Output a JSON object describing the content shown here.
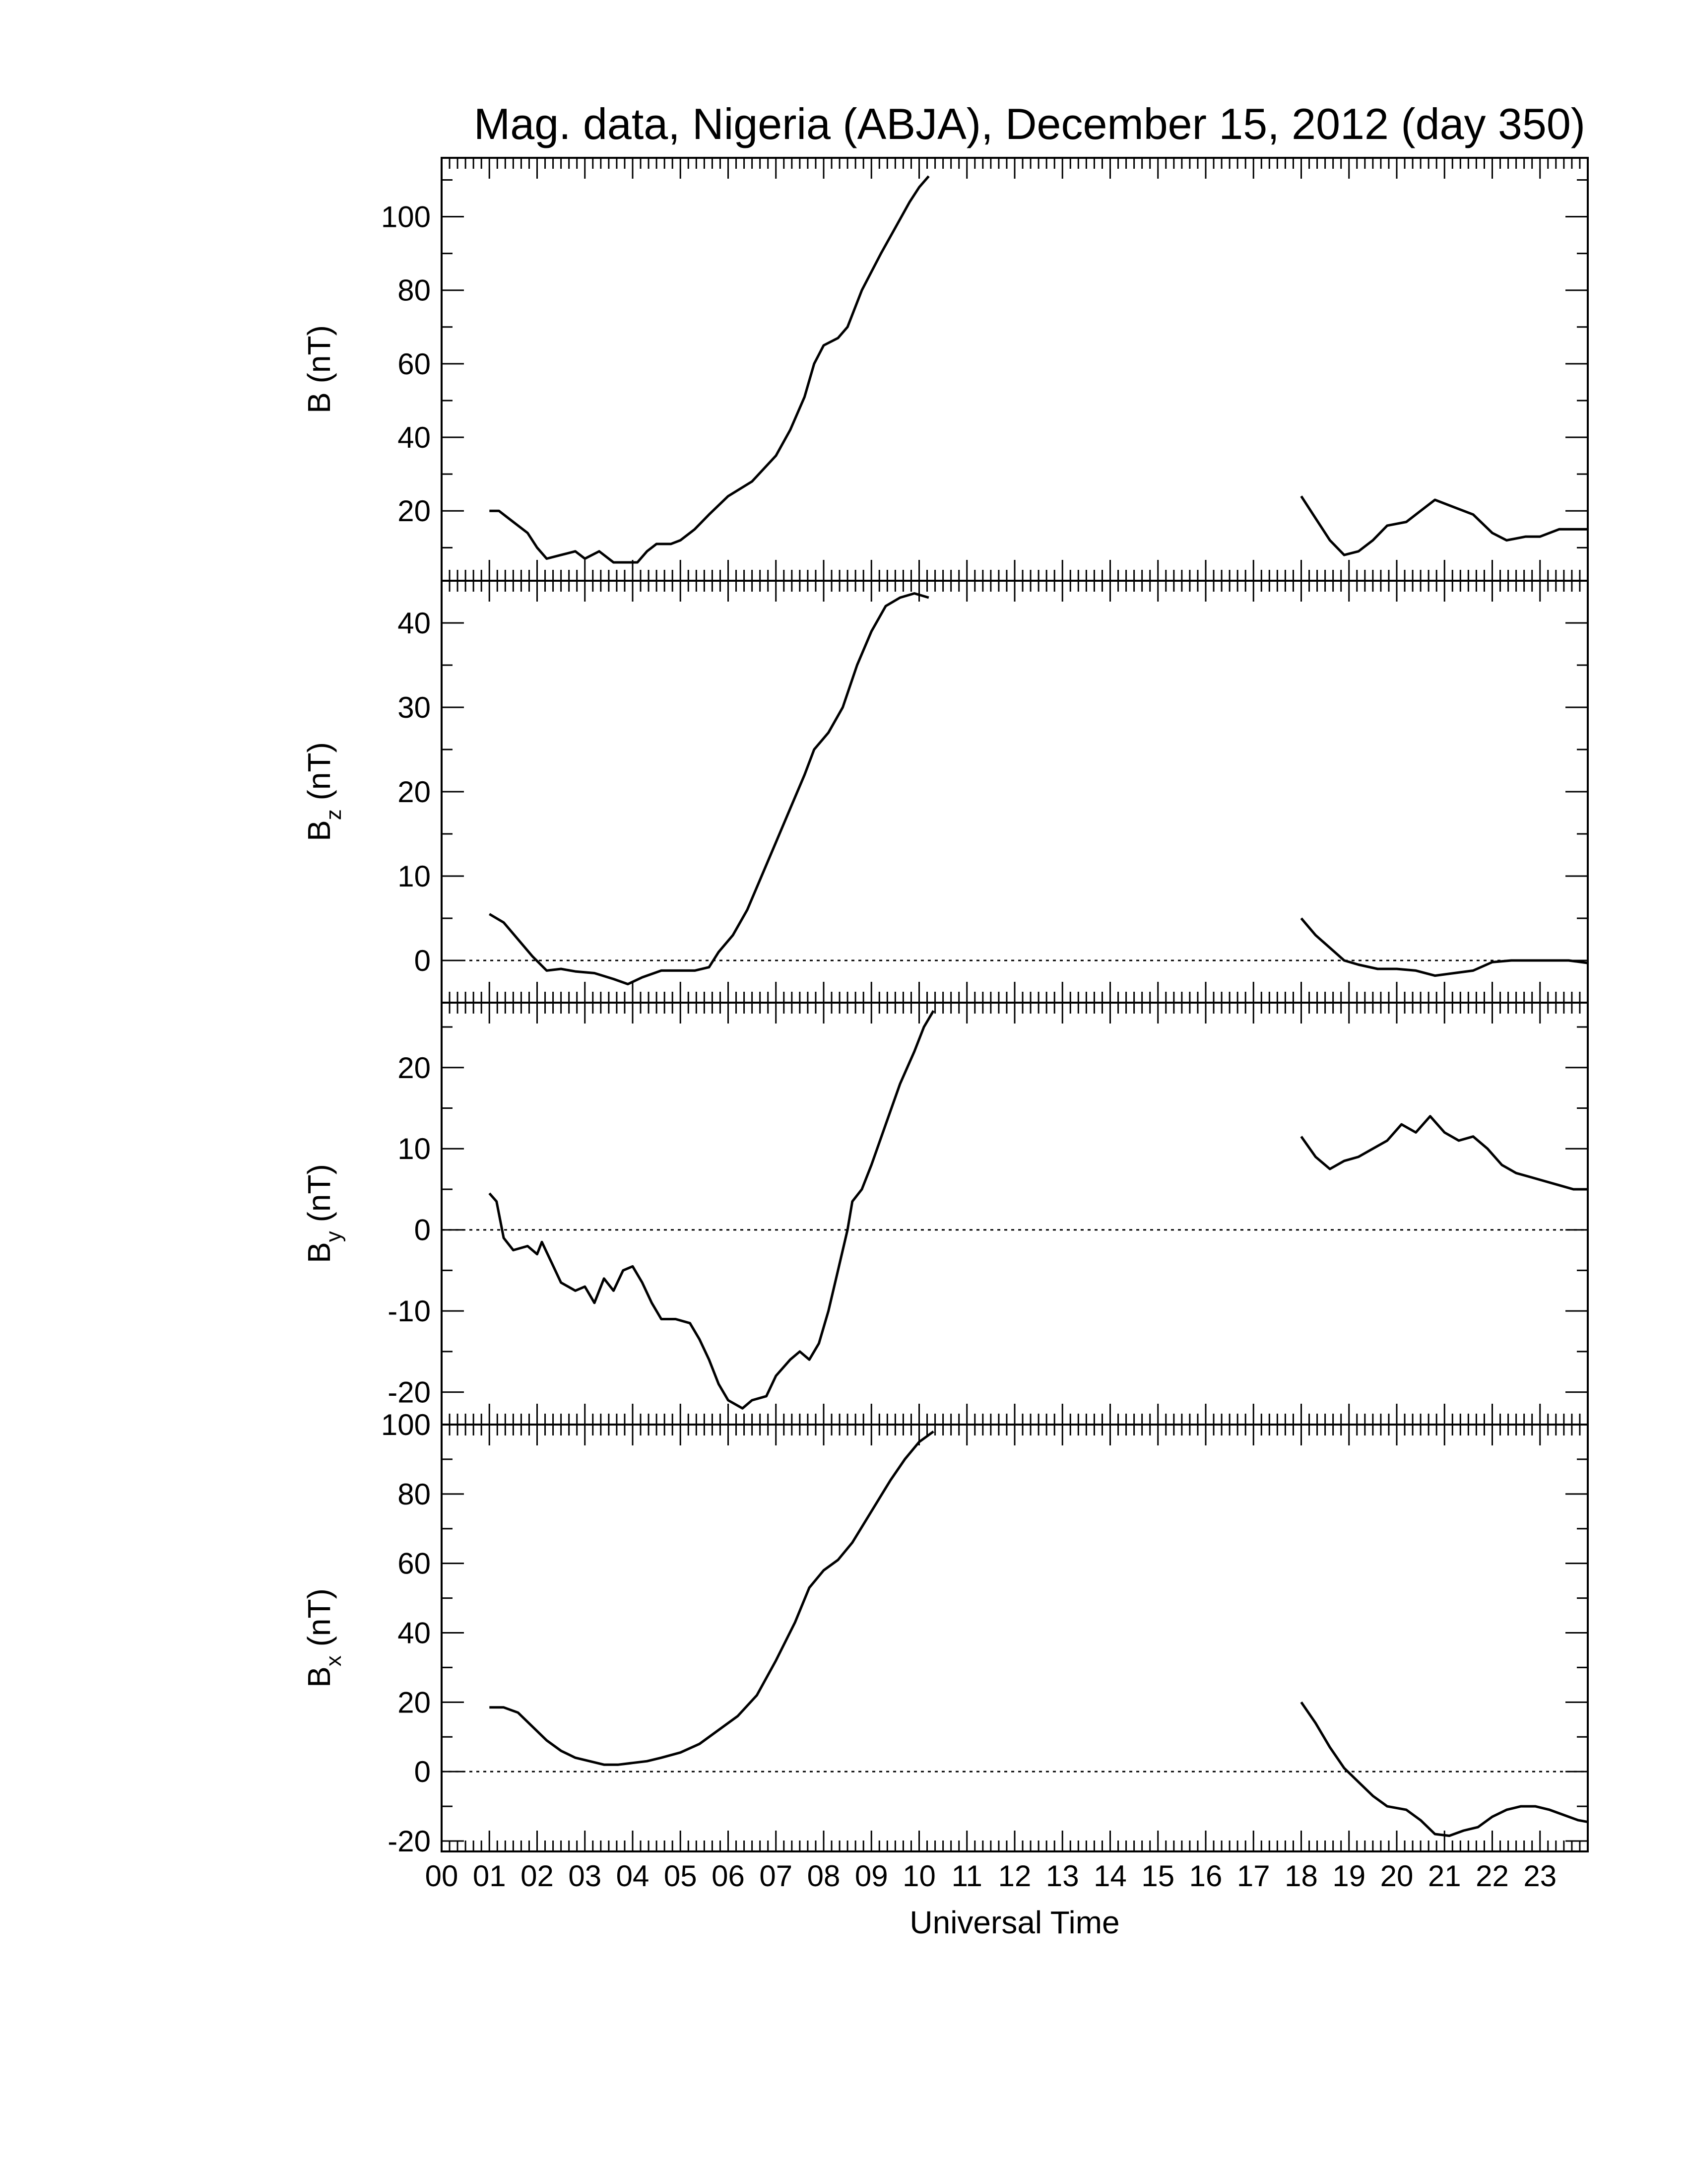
{
  "title": "Mag. data, Nigeria (ABJA), December 15, 2012 (day 350)",
  "chart_data": {
    "type": "line",
    "title": "Mag. data, Nigeria (ABJA), December 15, 2012 (day 350)",
    "xlabel": "Universal Time",
    "x_unit": "hours UT",
    "xlim": [
      0,
      24
    ],
    "x_tick_labels": [
      "00",
      "01",
      "02",
      "03",
      "04",
      "05",
      "06",
      "07",
      "08",
      "09",
      "10",
      "11",
      "12",
      "13",
      "14",
      "15",
      "16",
      "17",
      "18",
      "19",
      "20",
      "21",
      "22",
      "23"
    ],
    "panels": [
      {
        "id": "B",
        "ylabel_main": "B",
        "ylabel_sub": "",
        "ylabel_unit": "(nT)",
        "ylim": [
          1,
          116
        ],
        "yticks": [
          20,
          40,
          60,
          80,
          100
        ],
        "zero_line": false,
        "segments": [
          [
            [
              1.0,
              20
            ],
            [
              1.2,
              20
            ],
            [
              1.5,
              17
            ],
            [
              1.8,
              14
            ],
            [
              2.0,
              10
            ],
            [
              2.2,
              7
            ],
            [
              2.5,
              8
            ],
            [
              2.8,
              9
            ],
            [
              3.0,
              7
            ],
            [
              3.3,
              9
            ],
            [
              3.6,
              6
            ],
            [
              3.9,
              6
            ],
            [
              4.1,
              6
            ],
            [
              4.3,
              9
            ],
            [
              4.5,
              11
            ],
            [
              4.8,
              11
            ],
            [
              5.0,
              12
            ],
            [
              5.3,
              15
            ],
            [
              5.6,
              19
            ],
            [
              6.0,
              24
            ],
            [
              6.5,
              28
            ],
            [
              7.0,
              35
            ],
            [
              7.3,
              42
            ],
            [
              7.6,
              51
            ],
            [
              7.8,
              60
            ],
            [
              8.0,
              65
            ],
            [
              8.3,
              67
            ],
            [
              8.5,
              70
            ],
            [
              8.8,
              80
            ],
            [
              9.2,
              90
            ],
            [
              9.5,
              97
            ],
            [
              9.8,
              104
            ],
            [
              10.0,
              108
            ],
            [
              10.2,
              111
            ]
          ],
          [
            [
              18.0,
              24
            ],
            [
              18.3,
              18
            ],
            [
              18.6,
              12
            ],
            [
              18.9,
              8
            ],
            [
              19.2,
              9
            ],
            [
              19.5,
              12
            ],
            [
              19.8,
              16
            ],
            [
              20.2,
              17
            ],
            [
              20.5,
              20
            ],
            [
              20.8,
              23
            ],
            [
              21.2,
              21
            ],
            [
              21.6,
              19
            ],
            [
              22.0,
              14
            ],
            [
              22.3,
              12
            ],
            [
              22.7,
              13
            ],
            [
              23.0,
              13
            ],
            [
              23.4,
              15
            ],
            [
              23.7,
              15
            ],
            [
              24.0,
              15
            ]
          ]
        ]
      },
      {
        "id": "Bz",
        "ylabel_main": "B",
        "ylabel_sub": "z",
        "ylabel_unit": "(nT)",
        "ylim": [
          -5,
          45
        ],
        "yticks": [
          0,
          10,
          20,
          30,
          40
        ],
        "zero_line": true,
        "segments": [
          [
            [
              1.0,
              5.5
            ],
            [
              1.3,
              4.5
            ],
            [
              1.6,
              2.5
            ],
            [
              1.9,
              0.5
            ],
            [
              2.2,
              -1.2
            ],
            [
              2.5,
              -1.0
            ],
            [
              2.8,
              -1.3
            ],
            [
              3.2,
              -1.5
            ],
            [
              3.6,
              -2.2
            ],
            [
              3.9,
              -2.8
            ],
            [
              4.2,
              -2.0
            ],
            [
              4.6,
              -1.2
            ],
            [
              5.0,
              -1.2
            ],
            [
              5.3,
              -1.2
            ],
            [
              5.6,
              -0.8
            ],
            [
              5.8,
              1.0
            ],
            [
              6.1,
              3.0
            ],
            [
              6.4,
              6.0
            ],
            [
              6.7,
              10.0
            ],
            [
              7.0,
              14.0
            ],
            [
              7.3,
              18.0
            ],
            [
              7.6,
              22.0
            ],
            [
              7.8,
              25.0
            ],
            [
              8.1,
              27.0
            ],
            [
              8.4,
              30.0
            ],
            [
              8.7,
              35.0
            ],
            [
              9.0,
              39.0
            ],
            [
              9.3,
              42.0
            ],
            [
              9.6,
              43.0
            ],
            [
              9.9,
              43.5
            ],
            [
              10.2,
              43.0
            ]
          ],
          [
            [
              18.0,
              5.0
            ],
            [
              18.3,
              3.0
            ],
            [
              18.6,
              1.5
            ],
            [
              18.9,
              0.0
            ],
            [
              19.2,
              -0.5
            ],
            [
              19.6,
              -1.0
            ],
            [
              20.0,
              -1.0
            ],
            [
              20.4,
              -1.2
            ],
            [
              20.8,
              -1.8
            ],
            [
              21.2,
              -1.5
            ],
            [
              21.6,
              -1.2
            ],
            [
              22.0,
              -0.2
            ],
            [
              22.4,
              0.0
            ],
            [
              22.8,
              0.0
            ],
            [
              23.2,
              0.0
            ],
            [
              23.6,
              0.0
            ],
            [
              24.0,
              -0.3
            ]
          ]
        ]
      },
      {
        "id": "By",
        "ylabel_main": "B",
        "ylabel_sub": "y",
        "ylabel_unit": "(nT)",
        "ylim": [
          -24,
          28
        ],
        "yticks": [
          -20,
          -10,
          0,
          10,
          20
        ],
        "zero_line": true,
        "segments": [
          [
            [
              1.0,
              4.5
            ],
            [
              1.15,
              3.5
            ],
            [
              1.3,
              -1.0
            ],
            [
              1.5,
              -2.5
            ],
            [
              1.8,
              -2.0
            ],
            [
              2.0,
              -3.0
            ],
            [
              2.1,
              -1.5
            ],
            [
              2.3,
              -4.0
            ],
            [
              2.5,
              -6.5
            ],
            [
              2.8,
              -7.5
            ],
            [
              3.0,
              -7.0
            ],
            [
              3.2,
              -9.0
            ],
            [
              3.4,
              -6.0
            ],
            [
              3.6,
              -7.5
            ],
            [
              3.8,
              -5.0
            ],
            [
              4.0,
              -4.5
            ],
            [
              4.2,
              -6.5
            ],
            [
              4.4,
              -9.0
            ],
            [
              4.6,
              -11.0
            ],
            [
              4.9,
              -11.0
            ],
            [
              5.2,
              -11.5
            ],
            [
              5.4,
              -13.5
            ],
            [
              5.6,
              -16.0
            ],
            [
              5.8,
              -19.0
            ],
            [
              6.0,
              -21.0
            ],
            [
              6.3,
              -22.0
            ],
            [
              6.5,
              -21.0
            ],
            [
              6.8,
              -20.5
            ],
            [
              7.0,
              -18.0
            ],
            [
              7.3,
              -16.0
            ],
            [
              7.5,
              -15.0
            ],
            [
              7.7,
              -16.0
            ],
            [
              7.9,
              -14.0
            ],
            [
              8.1,
              -10.0
            ],
            [
              8.3,
              -5.0
            ],
            [
              8.5,
              0.0
            ],
            [
              8.6,
              3.5
            ],
            [
              8.8,
              5.0
            ],
            [
              9.0,
              8.0
            ],
            [
              9.3,
              13.0
            ],
            [
              9.6,
              18.0
            ],
            [
              9.9,
              22.0
            ],
            [
              10.1,
              25.0
            ],
            [
              10.3,
              27.0
            ]
          ],
          [
            [
              18.0,
              11.5
            ],
            [
              18.3,
              9.0
            ],
            [
              18.6,
              7.5
            ],
            [
              18.9,
              8.5
            ],
            [
              19.2,
              9.0
            ],
            [
              19.5,
              10.0
            ],
            [
              19.8,
              11.0
            ],
            [
              20.1,
              13.0
            ],
            [
              20.4,
              12.0
            ],
            [
              20.7,
              14.0
            ],
            [
              21.0,
              12.0
            ],
            [
              21.3,
              11.0
            ],
            [
              21.6,
              11.5
            ],
            [
              21.9,
              10.0
            ],
            [
              22.2,
              8.0
            ],
            [
              22.5,
              7.0
            ],
            [
              22.8,
              6.5
            ],
            [
              23.1,
              6.0
            ],
            [
              23.4,
              5.5
            ],
            [
              23.7,
              5.0
            ],
            [
              24.0,
              5.0
            ]
          ]
        ]
      },
      {
        "id": "Bx",
        "ylabel_main": "B",
        "ylabel_sub": "x",
        "ylabel_unit": "(nT)",
        "ylim": [
          -23,
          100
        ],
        "yticks": [
          -20,
          0,
          20,
          40,
          60,
          80,
          100
        ],
        "zero_line": true,
        "segments": [
          [
            [
              1.0,
              18.5
            ],
            [
              1.3,
              18.5
            ],
            [
              1.6,
              17.0
            ],
            [
              1.9,
              13.0
            ],
            [
              2.2,
              9.0
            ],
            [
              2.5,
              6.0
            ],
            [
              2.8,
              4.0
            ],
            [
              3.1,
              3.0
            ],
            [
              3.4,
              2.0
            ],
            [
              3.7,
              2.0
            ],
            [
              4.0,
              2.5
            ],
            [
              4.3,
              3.0
            ],
            [
              4.6,
              4.0
            ],
            [
              5.0,
              5.5
            ],
            [
              5.4,
              8.0
            ],
            [
              5.8,
              12.0
            ],
            [
              6.2,
              16.0
            ],
            [
              6.6,
              22.0
            ],
            [
              7.0,
              32.0
            ],
            [
              7.4,
              43.0
            ],
            [
              7.7,
              53.0
            ],
            [
              8.0,
              58.0
            ],
            [
              8.3,
              61.0
            ],
            [
              8.6,
              66.0
            ],
            [
              9.0,
              75.0
            ],
            [
              9.4,
              84.0
            ],
            [
              9.7,
              90.0
            ],
            [
              10.0,
              95.0
            ],
            [
              10.3,
              98.0
            ]
          ],
          [
            [
              18.0,
              20.0
            ],
            [
              18.3,
              14.0
            ],
            [
              18.6,
              7.0
            ],
            [
              18.9,
              1.0
            ],
            [
              19.2,
              -3.0
            ],
            [
              19.5,
              -7.0
            ],
            [
              19.8,
              -10.0
            ],
            [
              20.2,
              -11.0
            ],
            [
              20.5,
              -14.0
            ],
            [
              20.8,
              -18.0
            ],
            [
              21.1,
              -18.5
            ],
            [
              21.4,
              -17.0
            ],
            [
              21.7,
              -16.0
            ],
            [
              22.0,
              -13.0
            ],
            [
              22.3,
              -11.0
            ],
            [
              22.6,
              -10.0
            ],
            [
              22.9,
              -10.0
            ],
            [
              23.2,
              -11.0
            ],
            [
              23.5,
              -12.5
            ],
            [
              23.8,
              -14.0
            ],
            [
              24.0,
              -14.5
            ]
          ]
        ]
      }
    ]
  }
}
